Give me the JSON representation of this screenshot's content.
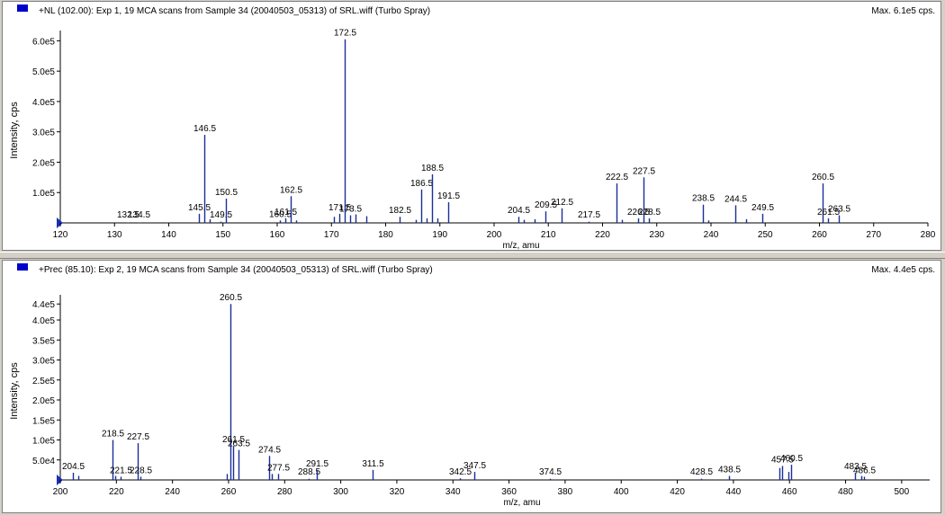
{
  "colors": {
    "trace": "#1a2e9a",
    "marker": "#0000cc",
    "background": "#ffffff",
    "frame": "#d4d0c8"
  },
  "chart_data": [
    {
      "type": "bar",
      "title": "+NL (102.00): Exp 1, 19 MCA scans from Sample 34 (20040503_05313) of SRL.wiff (Turbo Spray)",
      "max_label": "Max. 6.1e5 cps.",
      "xlabel": "m/z, amu",
      "ylabel": "Intensity, cps",
      "xlim": [
        120,
        280
      ],
      "ylim": [
        0,
        610000
      ],
      "x_ticks": [
        120,
        130,
        140,
        150,
        160,
        170,
        180,
        190,
        200,
        210,
        220,
        230,
        240,
        250,
        260,
        270,
        280
      ],
      "y_ticks": [
        {
          "value": 100000,
          "label": "1.0e5"
        },
        {
          "value": 200000,
          "label": "2.0e5"
        },
        {
          "value": 300000,
          "label": "3.0e5"
        },
        {
          "value": 400000,
          "label": "4.0e5"
        },
        {
          "value": 500000,
          "label": "5.0e5"
        },
        {
          "value": 600000,
          "label": "6.0e5"
        }
      ],
      "peaks": [
        {
          "x": 132.5,
          "y": 1500,
          "label": "132.5"
        },
        {
          "x": 134.5,
          "y": 1500,
          "label": "134.5"
        },
        {
          "x": 145.5,
          "y": 30000,
          "label": "145.5"
        },
        {
          "x": 146.5,
          "y": 290000,
          "label": "146.5"
        },
        {
          "x": 147.5,
          "y": 12000
        },
        {
          "x": 149.5,
          "y": 4000,
          "label": "149.5"
        },
        {
          "x": 150.5,
          "y": 80000,
          "label": "150.5"
        },
        {
          "x": 160.5,
          "y": 8000,
          "label": "160.5"
        },
        {
          "x": 161.5,
          "y": 15000,
          "label": "161.5"
        },
        {
          "x": 162.5,
          "y": 88000,
          "label": "162.5"
        },
        {
          "x": 163.5,
          "y": 8000
        },
        {
          "x": 170.5,
          "y": 20000
        },
        {
          "x": 171.5,
          "y": 30000,
          "label": "171.5"
        },
        {
          "x": 172.5,
          "y": 605000,
          "label": "172.5"
        },
        {
          "x": 173.5,
          "y": 25000,
          "label": "173.5"
        },
        {
          "x": 174.5,
          "y": 28000
        },
        {
          "x": 176.5,
          "y": 22000
        },
        {
          "x": 182.5,
          "y": 20000,
          "label": "182.5"
        },
        {
          "x": 185.5,
          "y": 10000
        },
        {
          "x": 186.5,
          "y": 110000,
          "label": "186.5"
        },
        {
          "x": 187.5,
          "y": 15000
        },
        {
          "x": 188.5,
          "y": 160000,
          "label": "188.5"
        },
        {
          "x": 189.5,
          "y": 15000
        },
        {
          "x": 191.5,
          "y": 68000,
          "label": "191.5"
        },
        {
          "x": 204.5,
          "y": 20000,
          "label": "204.5"
        },
        {
          "x": 205.5,
          "y": 10000
        },
        {
          "x": 207.5,
          "y": 12000
        },
        {
          "x": 209.5,
          "y": 38000,
          "label": "209.5"
        },
        {
          "x": 212.5,
          "y": 48000,
          "label": "212.5"
        },
        {
          "x": 217.5,
          "y": 4000,
          "label": "217.5"
        },
        {
          "x": 222.5,
          "y": 130000,
          "label": "222.5"
        },
        {
          "x": 223.5,
          "y": 10000
        },
        {
          "x": 226.5,
          "y": 15000,
          "label": "226.5"
        },
        {
          "x": 227.5,
          "y": 150000,
          "label": "227.5"
        },
        {
          "x": 228.5,
          "y": 15000,
          "label": "228.5"
        },
        {
          "x": 238.5,
          "y": 60000,
          "label": "238.5"
        },
        {
          "x": 239.5,
          "y": 8000
        },
        {
          "x": 244.5,
          "y": 58000,
          "label": "244.5"
        },
        {
          "x": 246.5,
          "y": 12000
        },
        {
          "x": 249.5,
          "y": 30000,
          "label": "249.5"
        },
        {
          "x": 260.5,
          "y": 130000,
          "label": "260.5"
        },
        {
          "x": 261.5,
          "y": 15000,
          "label": "261.5"
        },
        {
          "x": 263.5,
          "y": 25000,
          "label": "263.5"
        }
      ]
    },
    {
      "type": "bar",
      "title": "+Prec (85.10): Exp 2, 19 MCA scans from Sample 34 (20040503_05313) of SRL.wiff (Turbo Spray)",
      "max_label": "Max. 4.4e5 cps.",
      "xlabel": "m/z, amu",
      "ylabel": "Intensity, cps",
      "xlim": [
        200,
        510
      ],
      "ylim": [
        0,
        445000
      ],
      "x_ticks": [
        200,
        220,
        240,
        260,
        280,
        300,
        320,
        340,
        360,
        380,
        400,
        420,
        440,
        460,
        480,
        500
      ],
      "y_ticks": [
        {
          "value": 50000,
          "label": "5.0e4"
        },
        {
          "value": 100000,
          "label": "1.0e5"
        },
        {
          "value": 150000,
          "label": "1.5e5"
        },
        {
          "value": 200000,
          "label": "2.0e5"
        },
        {
          "value": 250000,
          "label": "2.5e5"
        },
        {
          "value": 300000,
          "label": "3.0e5"
        },
        {
          "value": 350000,
          "label": "3.5e5"
        },
        {
          "value": 400000,
          "label": "4.0e5"
        },
        {
          "value": 440000,
          "label": "4.4e5"
        }
      ],
      "peaks": [
        {
          "x": 204.5,
          "y": 18000,
          "label": "204.5"
        },
        {
          "x": 206.5,
          "y": 10000
        },
        {
          "x": 218.5,
          "y": 100000,
          "label": "218.5"
        },
        {
          "x": 219.5,
          "y": 10000
        },
        {
          "x": 221.5,
          "y": 8000,
          "label": "221.5"
        },
        {
          "x": 227.5,
          "y": 92000,
          "label": "227.5"
        },
        {
          "x": 228.5,
          "y": 8000,
          "label": "228.5"
        },
        {
          "x": 259.5,
          "y": 15000
        },
        {
          "x": 260.5,
          "y": 440000,
          "label": "260.5"
        },
        {
          "x": 261.5,
          "y": 85000,
          "label": "261.5"
        },
        {
          "x": 263.5,
          "y": 75000,
          "label": "263.5"
        },
        {
          "x": 274.5,
          "y": 60000,
          "label": "274.5"
        },
        {
          "x": 275.5,
          "y": 15000
        },
        {
          "x": 277.5,
          "y": 15000,
          "label": "277.5"
        },
        {
          "x": 288.5,
          "y": 3000,
          "label": "288.5"
        },
        {
          "x": 291.5,
          "y": 25000,
          "label": "291.5"
        },
        {
          "x": 311.5,
          "y": 25000,
          "label": "311.5"
        },
        {
          "x": 342.5,
          "y": 4000,
          "label": "342.5"
        },
        {
          "x": 347.5,
          "y": 20000,
          "label": "347.5"
        },
        {
          "x": 374.5,
          "y": 3000,
          "label": "374.5"
        },
        {
          "x": 428.5,
          "y": 3000,
          "label": "428.5"
        },
        {
          "x": 438.5,
          "y": 10000,
          "label": "438.5"
        },
        {
          "x": 456.5,
          "y": 30000
        },
        {
          "x": 457.5,
          "y": 35000,
          "label": "457.5"
        },
        {
          "x": 459.5,
          "y": 20000
        },
        {
          "x": 460.5,
          "y": 38000,
          "label": "460.5"
        },
        {
          "x": 483.5,
          "y": 18000,
          "label": "483.5"
        },
        {
          "x": 485.5,
          "y": 10000
        },
        {
          "x": 486.5,
          "y": 8000,
          "label": "486.5"
        }
      ]
    }
  ]
}
